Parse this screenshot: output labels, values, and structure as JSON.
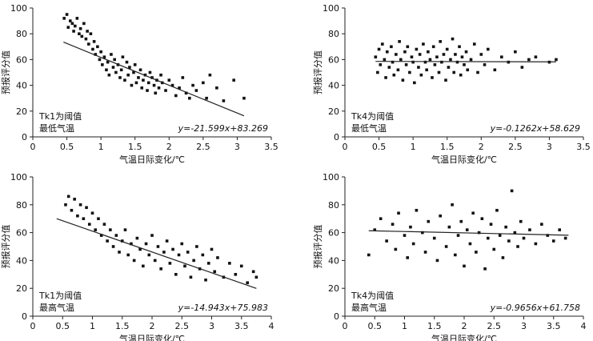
{
  "colors": {
    "marker": "#111111",
    "axis": "#222222",
    "fit_line": "#222222",
    "background": "#ffffff"
  },
  "chart_data": [
    {
      "type": "scatter",
      "position": "top-left",
      "xlabel": "气温日际变化/℃",
      "ylabel": "预报评分值",
      "xlim": [
        0,
        3.5
      ],
      "ylim": [
        0,
        100
      ],
      "xticks": [
        "0",
        "0.5",
        "1",
        "1.5",
        "2",
        "2.5",
        "3",
        "3.5"
      ],
      "yticks": [
        "0",
        "20",
        "40",
        "60",
        "80",
        "100"
      ],
      "annotation_line1": "Tk1为阈值",
      "annotation_line2": "最低气温",
      "equation": "y=-21.599x+83.269",
      "fit": {
        "slope": -21.599,
        "intercept": 83.269,
        "x_start": 0.45,
        "x_end": 3.1
      },
      "points": [
        [
          0.46,
          92
        ],
        [
          0.5,
          95
        ],
        [
          0.52,
          85
        ],
        [
          0.55,
          90
        ],
        [
          0.58,
          88
        ],
        [
          0.6,
          82
        ],
        [
          0.62,
          86
        ],
        [
          0.65,
          92
        ],
        [
          0.68,
          80
        ],
        [
          0.7,
          84
        ],
        [
          0.72,
          78
        ],
        [
          0.75,
          88
        ],
        [
          0.78,
          76
        ],
        [
          0.8,
          82
        ],
        [
          0.82,
          72
        ],
        [
          0.85,
          80
        ],
        [
          0.88,
          68
        ],
        [
          0.9,
          74
        ],
        [
          0.92,
          64
        ],
        [
          0.95,
          70
        ],
        [
          0.98,
          60
        ],
        [
          1.0,
          66
        ],
        [
          1.02,
          56
        ],
        [
          1.05,
          62
        ],
        [
          1.08,
          52
        ],
        [
          1.1,
          58
        ],
        [
          1.12,
          48
        ],
        [
          1.15,
          64
        ],
        [
          1.18,
          54
        ],
        [
          1.2,
          60
        ],
        [
          1.22,
          50
        ],
        [
          1.25,
          56
        ],
        [
          1.28,
          46
        ],
        [
          1.3,
          52
        ],
        [
          1.32,
          62
        ],
        [
          1.35,
          44
        ],
        [
          1.38,
          58
        ],
        [
          1.4,
          48
        ],
        [
          1.42,
          54
        ],
        [
          1.45,
          40
        ],
        [
          1.48,
          50
        ],
        [
          1.5,
          56
        ],
        [
          1.52,
          42
        ],
        [
          1.55,
          46
        ],
        [
          1.58,
          52
        ],
        [
          1.6,
          38
        ],
        [
          1.62,
          44
        ],
        [
          1.65,
          48
        ],
        [
          1.68,
          36
        ],
        [
          1.7,
          42
        ],
        [
          1.72,
          50
        ],
        [
          1.75,
          46
        ],
        [
          1.78,
          40
        ],
        [
          1.8,
          34
        ],
        [
          1.82,
          44
        ],
        [
          1.85,
          38
        ],
        [
          1.88,
          48
        ],
        [
          1.9,
          42
        ],
        [
          1.95,
          36
        ],
        [
          2.0,
          44
        ],
        [
          2.05,
          40
        ],
        [
          2.1,
          32
        ],
        [
          2.15,
          38
        ],
        [
          2.2,
          46
        ],
        [
          2.25,
          34
        ],
        [
          2.3,
          30
        ],
        [
          2.35,
          40
        ],
        [
          2.4,
          36
        ],
        [
          2.5,
          42
        ],
        [
          2.55,
          30
        ],
        [
          2.6,
          48
        ],
        [
          2.7,
          38
        ],
        [
          2.8,
          28
        ],
        [
          2.95,
          44
        ],
        [
          3.1,
          30
        ]
      ]
    },
    {
      "type": "scatter",
      "position": "top-right",
      "xlabel": "气温日际变化/℃",
      "ylabel": "预报评分值",
      "xlim": [
        0,
        3.5
      ],
      "ylim": [
        0,
        100
      ],
      "xticks": [
        "0",
        "0.5",
        "1",
        "1.5",
        "2",
        "2.5",
        "3",
        "3.5"
      ],
      "yticks": [
        "0",
        "20",
        "40",
        "60",
        "80",
        "100"
      ],
      "annotation_line1": "Tk4为阈值",
      "annotation_line2": "最低气温",
      "equation": "y=-0.1262x+58.629",
      "fit": {
        "slope": -0.1262,
        "intercept": 58.629,
        "x_start": 0.45,
        "x_end": 3.1
      },
      "points": [
        [
          0.45,
          62
        ],
        [
          0.48,
          50
        ],
        [
          0.5,
          68
        ],
        [
          0.52,
          56
        ],
        [
          0.55,
          72
        ],
        [
          0.58,
          60
        ],
        [
          0.6,
          46
        ],
        [
          0.62,
          66
        ],
        [
          0.65,
          54
        ],
        [
          0.68,
          70
        ],
        [
          0.7,
          58
        ],
        [
          0.72,
          48
        ],
        [
          0.75,
          64
        ],
        [
          0.78,
          52
        ],
        [
          0.8,
          74
        ],
        [
          0.82,
          60
        ],
        [
          0.85,
          44
        ],
        [
          0.88,
          66
        ],
        [
          0.9,
          56
        ],
        [
          0.92,
          70
        ],
        [
          0.95,
          50
        ],
        [
          0.98,
          62
        ],
        [
          1.0,
          58
        ],
        [
          1.02,
          42
        ],
        [
          1.05,
          68
        ],
        [
          1.08,
          54
        ],
        [
          1.1,
          64
        ],
        [
          1.12,
          48
        ],
        [
          1.15,
          72
        ],
        [
          1.18,
          58
        ],
        [
          1.2,
          52
        ],
        [
          1.22,
          66
        ],
        [
          1.25,
          60
        ],
        [
          1.28,
          46
        ],
        [
          1.3,
          70
        ],
        [
          1.32,
          56
        ],
        [
          1.35,
          62
        ],
        [
          1.38,
          50
        ],
        [
          1.4,
          74
        ],
        [
          1.42,
          58
        ],
        [
          1.45,
          64
        ],
        [
          1.48,
          44
        ],
        [
          1.5,
          68
        ],
        [
          1.52,
          54
        ],
        [
          1.55,
          60
        ],
        [
          1.58,
          76
        ],
        [
          1.6,
          50
        ],
        [
          1.62,
          64
        ],
        [
          1.65,
          58
        ],
        [
          1.68,
          70
        ],
        [
          1.7,
          48
        ],
        [
          1.72,
          62
        ],
        [
          1.75,
          56
        ],
        [
          1.78,
          66
        ],
        [
          1.8,
          52
        ],
        [
          1.85,
          60
        ],
        [
          1.9,
          72
        ],
        [
          1.95,
          50
        ],
        [
          2.0,
          64
        ],
        [
          2.05,
          56
        ],
        [
          2.1,
          68
        ],
        [
          2.2,
          52
        ],
        [
          2.3,
          62
        ],
        [
          2.4,
          58
        ],
        [
          2.5,
          66
        ],
        [
          2.6,
          54
        ],
        [
          2.7,
          60
        ],
        [
          2.8,
          62
        ],
        [
          3.0,
          58
        ],
        [
          3.1,
          60
        ]
      ]
    },
    {
      "type": "scatter",
      "position": "bottom-left",
      "xlabel": "气温日际变化/℃",
      "ylabel": "预报评分值",
      "xlim": [
        0,
        4
      ],
      "ylim": [
        0,
        100
      ],
      "xticks": [
        "0",
        "0.5",
        "1",
        "1.5",
        "2",
        "2.5",
        "3",
        "3.5",
        "4"
      ],
      "yticks": [
        "0",
        "20",
        "40",
        "60",
        "80",
        "100"
      ],
      "annotation_line1": "Tk1为阈值",
      "annotation_line2": "最高气温",
      "equation": "y=-14.943x+75.983",
      "fit": {
        "slope": -14.943,
        "intercept": 75.983,
        "x_start": 0.4,
        "x_end": 3.75
      },
      "points": [
        [
          0.55,
          80
        ],
        [
          0.6,
          86
        ],
        [
          0.65,
          76
        ],
        [
          0.7,
          84
        ],
        [
          0.75,
          72
        ],
        [
          0.8,
          80
        ],
        [
          0.85,
          70
        ],
        [
          0.9,
          78
        ],
        [
          0.95,
          66
        ],
        [
          1.0,
          74
        ],
        [
          1.05,
          62
        ],
        [
          1.1,
          70
        ],
        [
          1.15,
          58
        ],
        [
          1.2,
          66
        ],
        [
          1.25,
          54
        ],
        [
          1.3,
          62
        ],
        [
          1.35,
          50
        ],
        [
          1.4,
          58
        ],
        [
          1.45,
          46
        ],
        [
          1.5,
          54
        ],
        [
          1.55,
          62
        ],
        [
          1.6,
          44
        ],
        [
          1.65,
          52
        ],
        [
          1.7,
          40
        ],
        [
          1.75,
          56
        ],
        [
          1.8,
          48
        ],
        [
          1.85,
          36
        ],
        [
          1.9,
          52
        ],
        [
          1.95,
          44
        ],
        [
          2.0,
          58
        ],
        [
          2.05,
          40
        ],
        [
          2.1,
          50
        ],
        [
          2.15,
          34
        ],
        [
          2.2,
          46
        ],
        [
          2.25,
          54
        ],
        [
          2.3,
          38
        ],
        [
          2.35,
          48
        ],
        [
          2.4,
          30
        ],
        [
          2.45,
          44
        ],
        [
          2.5,
          52
        ],
        [
          2.55,
          36
        ],
        [
          2.6,
          46
        ],
        [
          2.65,
          28
        ],
        [
          2.7,
          40
        ],
        [
          2.75,
          50
        ],
        [
          2.8,
          34
        ],
        [
          2.85,
          44
        ],
        [
          2.9,
          26
        ],
        [
          2.95,
          38
        ],
        [
          3.0,
          48
        ],
        [
          3.05,
          32
        ],
        [
          3.1,
          42
        ],
        [
          3.2,
          28
        ],
        [
          3.3,
          38
        ],
        [
          3.4,
          30
        ],
        [
          3.5,
          36
        ],
        [
          3.6,
          24
        ],
        [
          3.7,
          32
        ],
        [
          3.75,
          28
        ]
      ]
    },
    {
      "type": "scatter",
      "position": "bottom-right",
      "xlabel": "气温日际变化/℃",
      "ylabel": "预报评分值",
      "xlim": [
        0,
        4
      ],
      "ylim": [
        0,
        100
      ],
      "xticks": [
        "0",
        "0.5",
        "1",
        "1.5",
        "2",
        "2.5",
        "3",
        "3.5",
        "4"
      ],
      "yticks": [
        "0",
        "20",
        "40",
        "60",
        "80",
        "100"
      ],
      "annotation_line1": "Tk4为阈值",
      "annotation_line2": "最高气温",
      "equation": "y=-0.9656x+61.758",
      "fit": {
        "slope": -0.9656,
        "intercept": 61.758,
        "x_start": 0.4,
        "x_end": 3.75
      },
      "points": [
        [
          0.4,
          44
        ],
        [
          0.5,
          62
        ],
        [
          0.6,
          70
        ],
        [
          0.7,
          54
        ],
        [
          0.8,
          66
        ],
        [
          0.85,
          48
        ],
        [
          0.9,
          74
        ],
        [
          1.0,
          58
        ],
        [
          1.05,
          42
        ],
        [
          1.1,
          64
        ],
        [
          1.15,
          52
        ],
        [
          1.2,
          76
        ],
        [
          1.3,
          60
        ],
        [
          1.35,
          46
        ],
        [
          1.4,
          68
        ],
        [
          1.5,
          56
        ],
        [
          1.55,
          40
        ],
        [
          1.6,
          72
        ],
        [
          1.7,
          50
        ],
        [
          1.75,
          64
        ],
        [
          1.8,
          80
        ],
        [
          1.85,
          44
        ],
        [
          1.9,
          58
        ],
        [
          1.95,
          68
        ],
        [
          2.0,
          36
        ],
        [
          2.05,
          62
        ],
        [
          2.1,
          52
        ],
        [
          2.15,
          74
        ],
        [
          2.2,
          46
        ],
        [
          2.25,
          60
        ],
        [
          2.3,
          70
        ],
        [
          2.35,
          34
        ],
        [
          2.4,
          56
        ],
        [
          2.45,
          66
        ],
        [
          2.5,
          48
        ],
        [
          2.55,
          76
        ],
        [
          2.6,
          58
        ],
        [
          2.65,
          42
        ],
        [
          2.7,
          64
        ],
        [
          2.75,
          54
        ],
        [
          2.8,
          90
        ],
        [
          2.85,
          60
        ],
        [
          2.9,
          50
        ],
        [
          2.95,
          68
        ],
        [
          3.0,
          56
        ],
        [
          3.1,
          62
        ],
        [
          3.2,
          52
        ],
        [
          3.3,
          66
        ],
        [
          3.4,
          58
        ],
        [
          3.5,
          54
        ],
        [
          3.6,
          62
        ],
        [
          3.7,
          56
        ]
      ]
    }
  ]
}
